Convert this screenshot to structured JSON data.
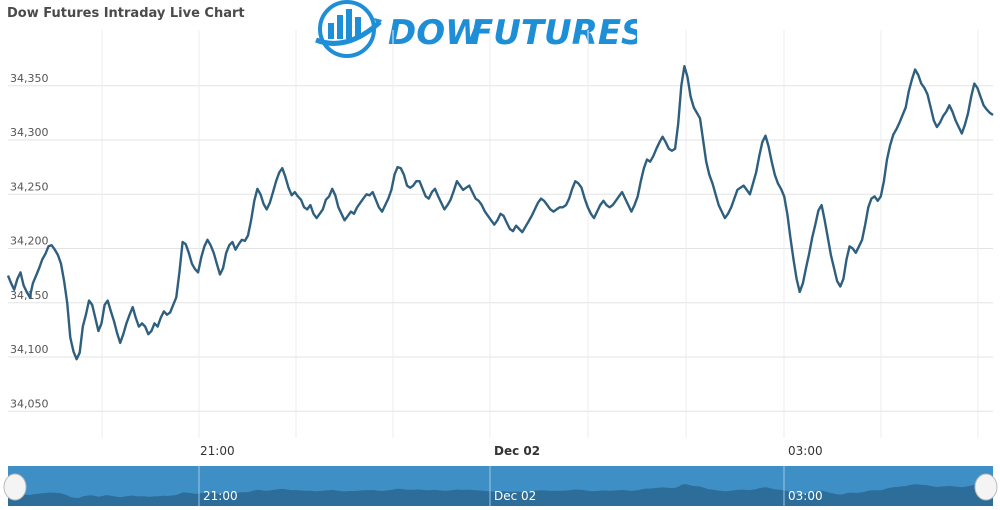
{
  "header": {
    "title": "Dow Futures Intraday Live Chart",
    "logo_text_1": "DOW",
    "logo_text_2": "FUTURES"
  },
  "colors": {
    "line": "#2f5f7f",
    "grid": "#e3e3e3",
    "navigator_bg": "#3f8fc7",
    "navigator_area": "#2c6d99",
    "logo_blue": "#1e8fd6"
  },
  "navigator": {
    "labels": [
      "21:00",
      "Dec 02",
      "03:00"
    ]
  },
  "chart_data": {
    "type": "line",
    "title": "Dow Futures Intraday Live Chart",
    "xlabel": "",
    "ylabel": "",
    "x_ticks": [
      "21:00",
      "Dec 02",
      "03:00"
    ],
    "y_ticks": [
      34050,
      34100,
      34150,
      34200,
      34250,
      34300,
      34350
    ],
    "y_tick_labels": [
      "34,050",
      "34,100",
      "34,150",
      "34,200",
      "34,250",
      "34,300",
      "34,350"
    ],
    "ylim": [
      34030,
      34380
    ],
    "grid": true,
    "series": [
      {
        "values": [
          34175,
          34168,
          34162,
          34172,
          34178,
          34166,
          34160,
          34155,
          34168,
          34175,
          34182,
          34190,
          34195,
          34202,
          34203,
          34199,
          34194,
          34186,
          34170,
          34150,
          34118,
          34105,
          34098,
          34104,
          34128,
          34139,
          34152,
          34148,
          34136,
          34124,
          34131,
          34148,
          34152,
          34142,
          34133,
          34122,
          34113,
          34121,
          34131,
          34139,
          34146,
          34136,
          34128,
          34131,
          34128,
          34121,
          34124,
          34131,
          34128,
          34136,
          34142,
          34139,
          34141,
          34148,
          34155,
          34178,
          34206,
          34204,
          34196,
          34186,
          34181,
          34178,
          34192,
          34202,
          34208,
          34203,
          34196,
          34186,
          34176,
          34182,
          34196,
          34203,
          34206,
          34199,
          34204,
          34208,
          34207,
          34212,
          34226,
          34244,
          34255,
          34250,
          34241,
          34236,
          34242,
          34252,
          34262,
          34270,
          34274,
          34266,
          34256,
          34249,
          34252,
          34248,
          34245,
          34238,
          34236,
          34240,
          34232,
          34228,
          34232,
          34236,
          34245,
          34248,
          34255,
          34249,
          34238,
          34232,
          34226,
          34230,
          34234,
          34232,
          34238,
          34242,
          34246,
          34250,
          34249,
          34252,
          34245,
          34238,
          34234,
          34240,
          34246,
          34254,
          34268,
          34275,
          34274,
          34268,
          34258,
          34256,
          34258,
          34262,
          34262,
          34255,
          34248,
          34246,
          34252,
          34255,
          34248,
          34242,
          34236,
          34240,
          34245,
          34253,
          34262,
          34258,
          34254,
          34256,
          34258,
          34252,
          34246,
          34244,
          34240,
          34234,
          34230,
          34226,
          34222,
          34226,
          34232,
          34230,
          34224,
          34218,
          34216,
          34221,
          34218,
          34215,
          34220,
          34225,
          34230,
          34236,
          34242,
          34246,
          34244,
          34240,
          34236,
          34234,
          34236,
          34238,
          34238,
          34240,
          34246,
          34255,
          34262,
          34260,
          34256,
          34246,
          34238,
          34232,
          34228,
          34234,
          34240,
          34244,
          34240,
          34238,
          34240,
          34244,
          34248,
          34252,
          34246,
          34240,
          34234,
          34240,
          34248,
          34262,
          34274,
          34282,
          34280,
          34285,
          34292,
          34298,
          34303,
          34298,
          34292,
          34290,
          34292,
          34315,
          34350,
          34368,
          34358,
          34340,
          34330,
          34325,
          34320,
          34300,
          34280,
          34268,
          34260,
          34250,
          34240,
          34234,
          34228,
          34232,
          34238,
          34246,
          34254,
          34256,
          34258,
          34254,
          34250,
          34260,
          34270,
          34285,
          34298,
          34304,
          34294,
          34280,
          34268,
          34260,
          34255,
          34248,
          34232,
          34210,
          34190,
          34172,
          34160,
          34168,
          34182,
          34195,
          34210,
          34222,
          34235,
          34240,
          34226,
          34210,
          34194,
          34182,
          34170,
          34165,
          34172,
          34190,
          34202,
          34200,
          34196,
          34202,
          34208,
          34222,
          34238,
          34246,
          34248,
          34244,
          34248,
          34262,
          34282,
          34295,
          34305,
          34310,
          34316,
          34323,
          34330,
          34345,
          34356,
          34365,
          34360,
          34352,
          34348,
          34342,
          34330,
          34318,
          34312,
          34316,
          34322,
          34326,
          34332,
          34326,
          34318,
          34312,
          34306,
          34314,
          34325,
          34340,
          34352,
          34348,
          34340,
          34332,
          34328,
          34325,
          34323
        ]
      }
    ]
  }
}
